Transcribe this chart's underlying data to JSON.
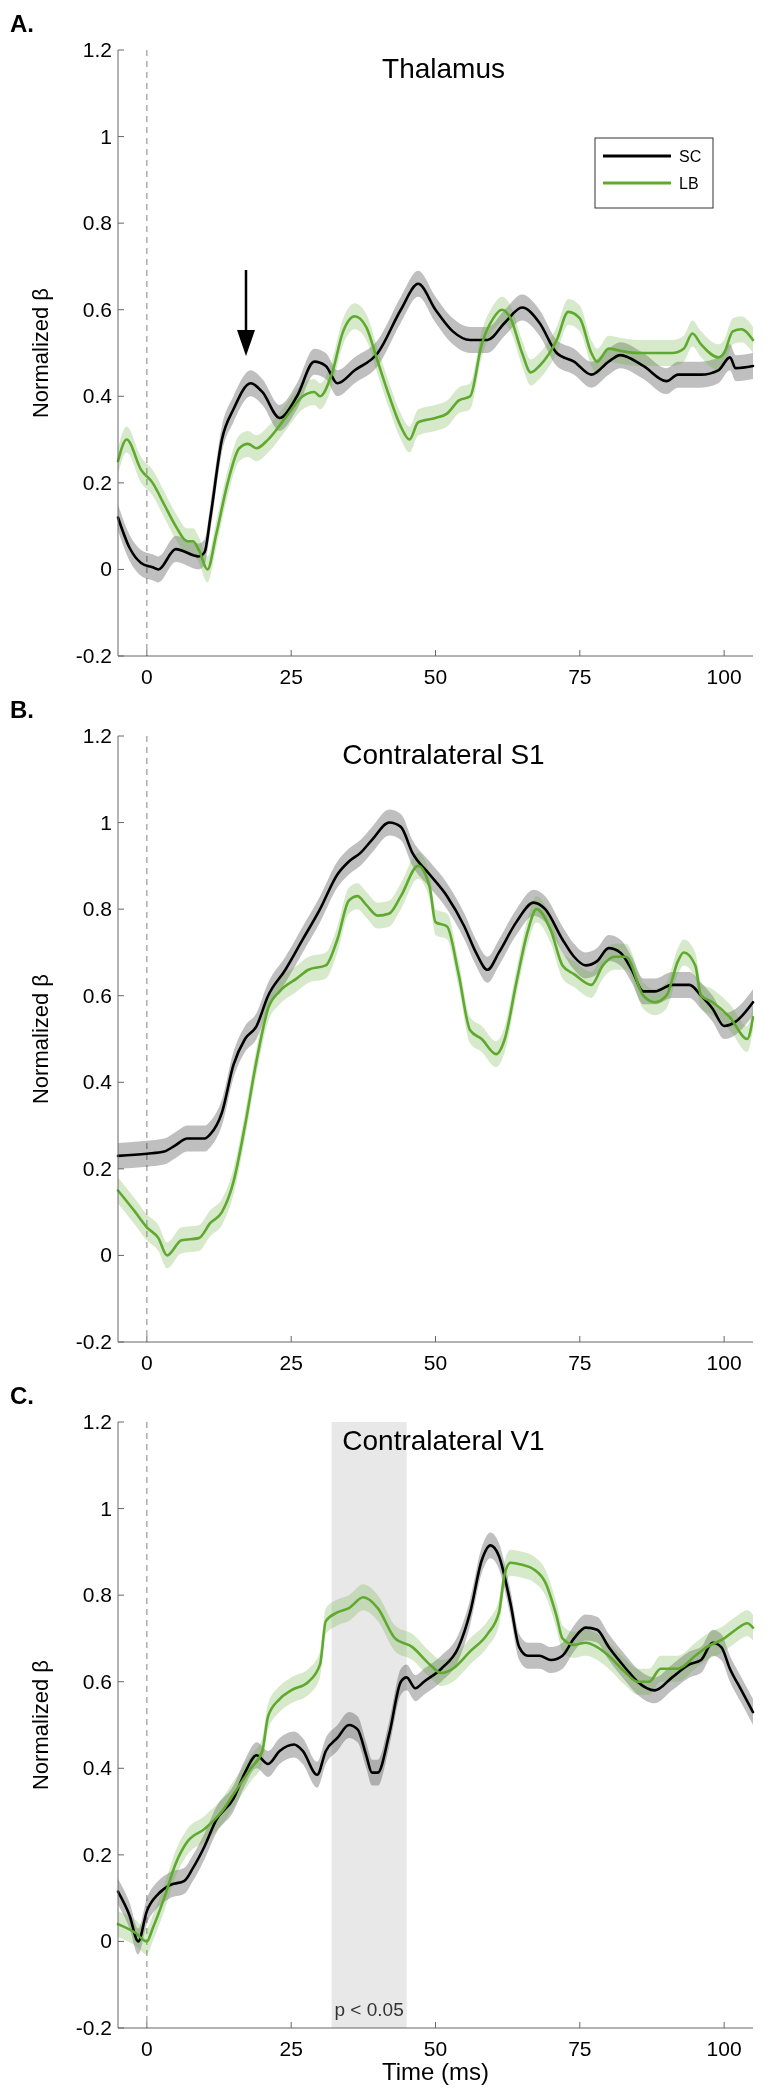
{
  "chart_data": [
    {
      "type": "line",
      "title": "Thalamus",
      "ylabel": "Normalized β",
      "annotations": [
        "A."
      ],
      "xlim": [
        -5,
        105
      ],
      "xticks": [
        0,
        25,
        50,
        75,
        100
      ],
      "ylim": [
        -0.2,
        1.2
      ],
      "yticks": [
        -0.2,
        0,
        0.2,
        0.4,
        0.6,
        0.8,
        1,
        1.2
      ],
      "legend": "top right",
      "ref_lines": [
        {
          "axis": "x",
          "value": 0,
          "color": "#999999",
          "line_style": "dashed"
        }
      ],
      "series": [
        {
          "name": "SC",
          "color": "#000000",
          "x": [
            -5,
            -3,
            -1,
            1,
            2,
            5,
            9,
            10,
            11,
            13,
            15,
            18,
            20,
            23,
            26,
            29,
            31,
            33,
            36,
            40,
            44,
            47,
            50,
            53,
            56,
            59,
            62,
            65,
            68,
            71,
            74,
            77,
            80,
            82,
            86,
            90,
            92,
            96,
            99,
            101,
            102,
            105
          ],
          "values": [
            0.12,
            0.05,
            0.015,
            0.005,
            0,
            0.047,
            0.03,
            0.04,
            0.12,
            0.3,
            0.37,
            0.43,
            0.41,
            0.35,
            0.4,
            0.48,
            0.47,
            0.43,
            0.46,
            0.5,
            0.6,
            0.66,
            0.6,
            0.55,
            0.53,
            0.53,
            0.57,
            0.605,
            0.57,
            0.5,
            0.48,
            0.45,
            0.48,
            0.495,
            0.47,
            0.435,
            0.45,
            0.45,
            0.46,
            0.49,
            0.465,
            0.47
          ],
          "lower": [
            0.09,
            0.02,
            -0.015,
            -0.025,
            -0.03,
            0.017,
            0,
            0.01,
            0.09,
            0.27,
            0.34,
            0.4,
            0.38,
            0.32,
            0.37,
            0.45,
            0.44,
            0.4,
            0.43,
            0.47,
            0.57,
            0.63,
            0.57,
            0.52,
            0.5,
            0.5,
            0.54,
            0.575,
            0.54,
            0.47,
            0.45,
            0.42,
            0.45,
            0.465,
            0.44,
            0.405,
            0.42,
            0.42,
            0.43,
            0.46,
            0.435,
            0.44
          ],
          "upper": [
            0.15,
            0.08,
            0.045,
            0.035,
            0.03,
            0.077,
            0.06,
            0.07,
            0.15,
            0.33,
            0.4,
            0.46,
            0.44,
            0.38,
            0.43,
            0.51,
            0.5,
            0.46,
            0.49,
            0.53,
            0.63,
            0.69,
            0.63,
            0.58,
            0.56,
            0.56,
            0.6,
            0.635,
            0.6,
            0.53,
            0.51,
            0.48,
            0.51,
            0.525,
            0.5,
            0.465,
            0.48,
            0.48,
            0.49,
            0.52,
            0.495,
            0.5
          ]
        },
        {
          "name": "LB",
          "color": "#5ea92e",
          "x": [
            -5,
            -3.5,
            -1,
            1,
            3,
            5,
            7,
            8,
            9,
            10.5,
            12,
            14,
            16,
            17.5,
            19,
            21,
            24,
            27,
            29,
            30,
            32,
            34,
            36,
            38,
            40,
            42,
            44,
            45.5,
            47,
            50,
            52,
            54,
            56,
            58,
            60,
            61.5,
            63,
            65,
            66.5,
            68,
            71,
            73,
            75,
            77,
            78,
            80,
            82,
            85,
            88,
            91,
            93,
            94.5,
            96,
            99,
            100,
            101.5,
            103,
            105
          ],
          "values": [
            0.25,
            0.3,
            0.23,
            0.2,
            0.15,
            0.1,
            0.065,
            0.065,
            0.045,
            0,
            0.08,
            0.2,
            0.28,
            0.29,
            0.28,
            0.3,
            0.35,
            0.4,
            0.41,
            0.4,
            0.45,
            0.55,
            0.585,
            0.56,
            0.48,
            0.4,
            0.33,
            0.3,
            0.34,
            0.35,
            0.36,
            0.39,
            0.4,
            0.52,
            0.58,
            0.6,
            0.58,
            0.5,
            0.455,
            0.47,
            0.53,
            0.595,
            0.58,
            0.5,
            0.48,
            0.51,
            0.505,
            0.5,
            0.5,
            0.5,
            0.51,
            0.545,
            0.52,
            0.49,
            0.5,
            0.55,
            0.555,
            0.53
          ],
          "lower": [
            0.22,
            0.27,
            0.2,
            0.17,
            0.12,
            0.07,
            0.035,
            0.035,
            0.015,
            -0.03,
            0.05,
            0.17,
            0.25,
            0.26,
            0.25,
            0.27,
            0.32,
            0.37,
            0.38,
            0.37,
            0.42,
            0.52,
            0.555,
            0.53,
            0.45,
            0.37,
            0.3,
            0.27,
            0.31,
            0.32,
            0.33,
            0.36,
            0.37,
            0.49,
            0.55,
            0.57,
            0.55,
            0.47,
            0.425,
            0.44,
            0.5,
            0.565,
            0.55,
            0.47,
            0.45,
            0.48,
            0.475,
            0.47,
            0.47,
            0.47,
            0.48,
            0.515,
            0.49,
            0.46,
            0.47,
            0.52,
            0.525,
            0.5
          ],
          "upper": [
            0.28,
            0.33,
            0.26,
            0.23,
            0.18,
            0.13,
            0.095,
            0.095,
            0.075,
            0.03,
            0.11,
            0.23,
            0.31,
            0.32,
            0.31,
            0.33,
            0.38,
            0.43,
            0.44,
            0.43,
            0.48,
            0.58,
            0.615,
            0.59,
            0.51,
            0.43,
            0.36,
            0.33,
            0.37,
            0.38,
            0.39,
            0.42,
            0.43,
            0.55,
            0.61,
            0.63,
            0.61,
            0.53,
            0.485,
            0.5,
            0.56,
            0.625,
            0.61,
            0.53,
            0.51,
            0.54,
            0.535,
            0.53,
            0.53,
            0.53,
            0.54,
            0.575,
            0.55,
            0.52,
            0.53,
            0.58,
            0.585,
            0.56
          ]
        }
      ]
    },
    {
      "type": "line",
      "title": "Contralateral S1",
      "ylabel": "Normalized β",
      "annotations": [
        "B."
      ],
      "xlim": [
        -5,
        105
      ],
      "xticks": [
        0,
        25,
        50,
        75,
        100
      ],
      "ylim": [
        -0.2,
        1.2
      ],
      "yticks": [
        -0.2,
        0,
        0.2,
        0.4,
        0.6,
        0.8,
        1,
        1.2
      ],
      "ref_lines": [
        {
          "axis": "x",
          "value": 0,
          "color": "#999999",
          "line_style": "dashed"
        }
      ],
      "series": [
        {
          "color": "#000000",
          "x": [
            -5,
            0,
            3,
            5,
            7,
            10,
            11,
            13,
            15,
            17,
            19,
            21,
            24,
            27,
            30,
            33,
            35,
            37,
            39,
            42,
            44,
            46,
            49,
            52,
            55,
            57,
            59,
            61,
            64,
            67,
            69,
            72,
            74,
            76,
            78,
            80,
            82,
            84,
            86,
            88,
            91,
            94,
            96,
            98,
            100,
            102,
            105
          ],
          "values": [
            0.23,
            0.235,
            0.24,
            0.255,
            0.27,
            0.27,
            0.28,
            0.33,
            0.44,
            0.5,
            0.53,
            0.6,
            0.66,
            0.73,
            0.8,
            0.88,
            0.91,
            0.93,
            0.96,
            1,
            0.99,
            0.93,
            0.88,
            0.83,
            0.76,
            0.7,
            0.66,
            0.7,
            0.77,
            0.815,
            0.8,
            0.73,
            0.69,
            0.67,
            0.68,
            0.71,
            0.7,
            0.66,
            0.61,
            0.61,
            0.625,
            0.625,
            0.6,
            0.57,
            0.53,
            0.54,
            0.585
          ],
          "lower": [
            0.2,
            0.205,
            0.21,
            0.225,
            0.24,
            0.24,
            0.25,
            0.3,
            0.41,
            0.47,
            0.5,
            0.57,
            0.63,
            0.7,
            0.77,
            0.85,
            0.88,
            0.9,
            0.93,
            0.97,
            0.96,
            0.9,
            0.85,
            0.8,
            0.73,
            0.67,
            0.63,
            0.67,
            0.74,
            0.785,
            0.77,
            0.7,
            0.66,
            0.64,
            0.65,
            0.68,
            0.67,
            0.63,
            0.58,
            0.58,
            0.595,
            0.595,
            0.57,
            0.54,
            0.5,
            0.51,
            0.555
          ],
          "upper": [
            0.26,
            0.265,
            0.27,
            0.285,
            0.3,
            0.3,
            0.31,
            0.36,
            0.47,
            0.53,
            0.56,
            0.63,
            0.69,
            0.76,
            0.83,
            0.91,
            0.94,
            0.96,
            0.99,
            1.03,
            1.02,
            0.96,
            0.91,
            0.86,
            0.79,
            0.73,
            0.69,
            0.73,
            0.8,
            0.845,
            0.83,
            0.76,
            0.72,
            0.7,
            0.71,
            0.74,
            0.73,
            0.69,
            0.64,
            0.64,
            0.655,
            0.655,
            0.63,
            0.6,
            0.56,
            0.57,
            0.615
          ]
        },
        {
          "color": "#5ea92e",
          "x": [
            -5,
            -2,
            0,
            2,
            3.5,
            6,
            9,
            11,
            13,
            15,
            17,
            19,
            21,
            23,
            26,
            28,
            31,
            33,
            35,
            36.5,
            38,
            40,
            42,
            44,
            47,
            49,
            50,
            52,
            54,
            56,
            58,
            60.5,
            62,
            64,
            66,
            67.5,
            70,
            72,
            74,
            77,
            79,
            81,
            83,
            86,
            88,
            90,
            92,
            93,
            95,
            96,
            98,
            101,
            104,
            105
          ],
          "values": [
            0.15,
            0.1,
            0.065,
            0.04,
            0,
            0.035,
            0.04,
            0.075,
            0.1,
            0.17,
            0.3,
            0.45,
            0.57,
            0.61,
            0.64,
            0.66,
            0.67,
            0.73,
            0.82,
            0.83,
            0.81,
            0.785,
            0.79,
            0.83,
            0.9,
            0.85,
            0.77,
            0.76,
            0.65,
            0.52,
            0.5,
            0.465,
            0.5,
            0.63,
            0.75,
            0.8,
            0.75,
            0.67,
            0.65,
            0.625,
            0.67,
            0.69,
            0.69,
            0.6,
            0.585,
            0.6,
            0.68,
            0.7,
            0.67,
            0.6,
            0.585,
            0.55,
            0.5,
            0.55
          ],
          "lower": [
            0.12,
            0.07,
            0.035,
            0.01,
            -0.03,
            0.005,
            0.01,
            0.045,
            0.07,
            0.14,
            0.27,
            0.42,
            0.54,
            0.58,
            0.61,
            0.63,
            0.64,
            0.7,
            0.79,
            0.8,
            0.78,
            0.755,
            0.76,
            0.8,
            0.87,
            0.82,
            0.74,
            0.73,
            0.62,
            0.49,
            0.47,
            0.435,
            0.47,
            0.6,
            0.72,
            0.77,
            0.72,
            0.64,
            0.62,
            0.595,
            0.64,
            0.66,
            0.66,
            0.57,
            0.555,
            0.57,
            0.65,
            0.67,
            0.64,
            0.57,
            0.555,
            0.52,
            0.47,
            0.52
          ],
          "upper": [
            0.18,
            0.13,
            0.095,
            0.07,
            0.03,
            0.065,
            0.07,
            0.105,
            0.13,
            0.2,
            0.33,
            0.48,
            0.6,
            0.64,
            0.67,
            0.69,
            0.7,
            0.76,
            0.85,
            0.86,
            0.84,
            0.815,
            0.82,
            0.86,
            0.93,
            0.88,
            0.8,
            0.79,
            0.68,
            0.55,
            0.53,
            0.495,
            0.53,
            0.66,
            0.78,
            0.83,
            0.78,
            0.7,
            0.68,
            0.655,
            0.7,
            0.72,
            0.72,
            0.63,
            0.615,
            0.63,
            0.71,
            0.73,
            0.7,
            0.63,
            0.615,
            0.58,
            0.53,
            0.58
          ]
        }
      ]
    },
    {
      "type": "line",
      "title": "Contralateral V1",
      "xlabel": "Time (ms)",
      "ylabel": "Normalized β",
      "annotations": [
        "C."
      ],
      "xlim": [
        -5,
        105
      ],
      "xticks": [
        0,
        25,
        50,
        75,
        100
      ],
      "ylim": [
        -0.2,
        1.2
      ],
      "yticks": [
        -0.2,
        0,
        0.2,
        0.4,
        0.6,
        0.8,
        1,
        1.2
      ],
      "ref_lines": [
        {
          "axis": "x",
          "value": 0,
          "color": "#999999",
          "line_style": "dashed"
        }
      ],
      "bands": [
        {
          "axis": "x",
          "from": 32,
          "to": 45,
          "label": "p < 0.05",
          "color": "#e8e8e8"
        }
      ],
      "series": [
        {
          "color": "#000000",
          "x": [
            -5,
            -3,
            -1.5,
            0,
            2,
            4,
            6.5,
            8,
            10,
            12,
            15,
            17,
            19,
            21,
            23,
            25.5,
            27,
            29.5,
            31,
            33,
            35,
            36.5,
            38,
            39,
            40,
            42,
            44,
            45,
            46.5,
            48,
            51,
            54,
            56,
            58,
            59.5,
            61,
            63,
            64.5,
            66,
            68,
            70,
            72,
            74,
            76,
            78,
            80,
            83,
            85,
            88,
            91,
            94,
            96,
            98,
            99.5,
            101,
            103,
            105
          ],
          "values": [
            0.115,
            0.06,
            0,
            0.07,
            0.11,
            0.13,
            0.14,
            0.17,
            0.22,
            0.28,
            0.33,
            0.39,
            0.43,
            0.41,
            0.44,
            0.455,
            0.44,
            0.385,
            0.44,
            0.47,
            0.5,
            0.49,
            0.43,
            0.39,
            0.39,
            0.48,
            0.6,
            0.61,
            0.585,
            0.6,
            0.63,
            0.68,
            0.76,
            0.88,
            0.915,
            0.89,
            0.78,
            0.68,
            0.66,
            0.66,
            0.65,
            0.66,
            0.7,
            0.725,
            0.72,
            0.68,
            0.63,
            0.6,
            0.58,
            0.61,
            0.64,
            0.65,
            0.69,
            0.68,
            0.63,
            0.58,
            0.53
          ],
          "lower": [
            0.085,
            0.03,
            -0.03,
            0.04,
            0.08,
            0.1,
            0.11,
            0.14,
            0.19,
            0.25,
            0.3,
            0.36,
            0.4,
            0.38,
            0.41,
            0.425,
            0.41,
            0.355,
            0.41,
            0.44,
            0.47,
            0.46,
            0.4,
            0.36,
            0.36,
            0.45,
            0.57,
            0.58,
            0.555,
            0.57,
            0.6,
            0.65,
            0.73,
            0.85,
            0.885,
            0.86,
            0.75,
            0.65,
            0.63,
            0.63,
            0.62,
            0.63,
            0.67,
            0.695,
            0.69,
            0.65,
            0.6,
            0.57,
            0.55,
            0.58,
            0.61,
            0.62,
            0.66,
            0.65,
            0.6,
            0.55,
            0.5
          ],
          "upper": [
            0.145,
            0.09,
            0.03,
            0.1,
            0.14,
            0.16,
            0.17,
            0.2,
            0.25,
            0.31,
            0.36,
            0.42,
            0.46,
            0.44,
            0.47,
            0.485,
            0.47,
            0.415,
            0.47,
            0.5,
            0.53,
            0.52,
            0.46,
            0.42,
            0.42,
            0.51,
            0.63,
            0.64,
            0.615,
            0.63,
            0.66,
            0.71,
            0.79,
            0.91,
            0.945,
            0.92,
            0.81,
            0.71,
            0.69,
            0.69,
            0.68,
            0.69,
            0.73,
            0.755,
            0.75,
            0.71,
            0.66,
            0.63,
            0.61,
            0.64,
            0.67,
            0.68,
            0.72,
            0.71,
            0.66,
            0.61,
            0.56
          ]
        },
        {
          "color": "#5ea92e",
          "x": [
            -5,
            -2,
            0,
            1,
            3,
            5,
            7,
            10,
            13,
            15,
            18,
            20,
            21,
            23,
            25,
            28,
            30,
            31,
            33,
            35,
            37.5,
            40,
            43,
            46,
            49,
            51,
            53,
            56,
            59,
            61,
            62,
            63,
            65,
            67,
            69,
            71,
            72,
            74,
            76,
            78,
            80,
            83,
            85,
            87,
            89,
            92,
            95,
            97,
            100,
            102,
            104,
            105
          ],
          "values": [
            0.04,
            0.02,
            0,
            0.03,
            0.1,
            0.18,
            0.23,
            0.26,
            0.3,
            0.34,
            0.4,
            0.44,
            0.52,
            0.56,
            0.58,
            0.6,
            0.64,
            0.74,
            0.76,
            0.77,
            0.795,
            0.77,
            0.7,
            0.68,
            0.64,
            0.62,
            0.63,
            0.67,
            0.71,
            0.76,
            0.85,
            0.875,
            0.87,
            0.86,
            0.83,
            0.75,
            0.7,
            0.685,
            0.69,
            0.68,
            0.66,
            0.62,
            0.6,
            0.6,
            0.63,
            0.63,
            0.66,
            0.68,
            0.7,
            0.72,
            0.735,
            0.725
          ],
          "lower": [
            0.01,
            -0.01,
            -0.03,
            0,
            0.07,
            0.15,
            0.2,
            0.23,
            0.27,
            0.31,
            0.37,
            0.41,
            0.49,
            0.53,
            0.55,
            0.57,
            0.61,
            0.71,
            0.73,
            0.74,
            0.765,
            0.74,
            0.67,
            0.65,
            0.61,
            0.59,
            0.6,
            0.64,
            0.68,
            0.73,
            0.82,
            0.845,
            0.84,
            0.83,
            0.8,
            0.72,
            0.67,
            0.655,
            0.66,
            0.65,
            0.63,
            0.59,
            0.57,
            0.57,
            0.6,
            0.6,
            0.63,
            0.65,
            0.67,
            0.69,
            0.705,
            0.695
          ],
          "upper": [
            0.07,
            0.05,
            0.03,
            0.06,
            0.13,
            0.21,
            0.26,
            0.29,
            0.33,
            0.37,
            0.43,
            0.47,
            0.55,
            0.59,
            0.61,
            0.63,
            0.67,
            0.77,
            0.79,
            0.8,
            0.825,
            0.8,
            0.73,
            0.71,
            0.67,
            0.65,
            0.66,
            0.7,
            0.74,
            0.79,
            0.88,
            0.905,
            0.9,
            0.89,
            0.86,
            0.78,
            0.73,
            0.715,
            0.72,
            0.71,
            0.69,
            0.65,
            0.63,
            0.63,
            0.66,
            0.66,
            0.69,
            0.71,
            0.73,
            0.75,
            0.765,
            0.755
          ]
        }
      ]
    }
  ]
}
